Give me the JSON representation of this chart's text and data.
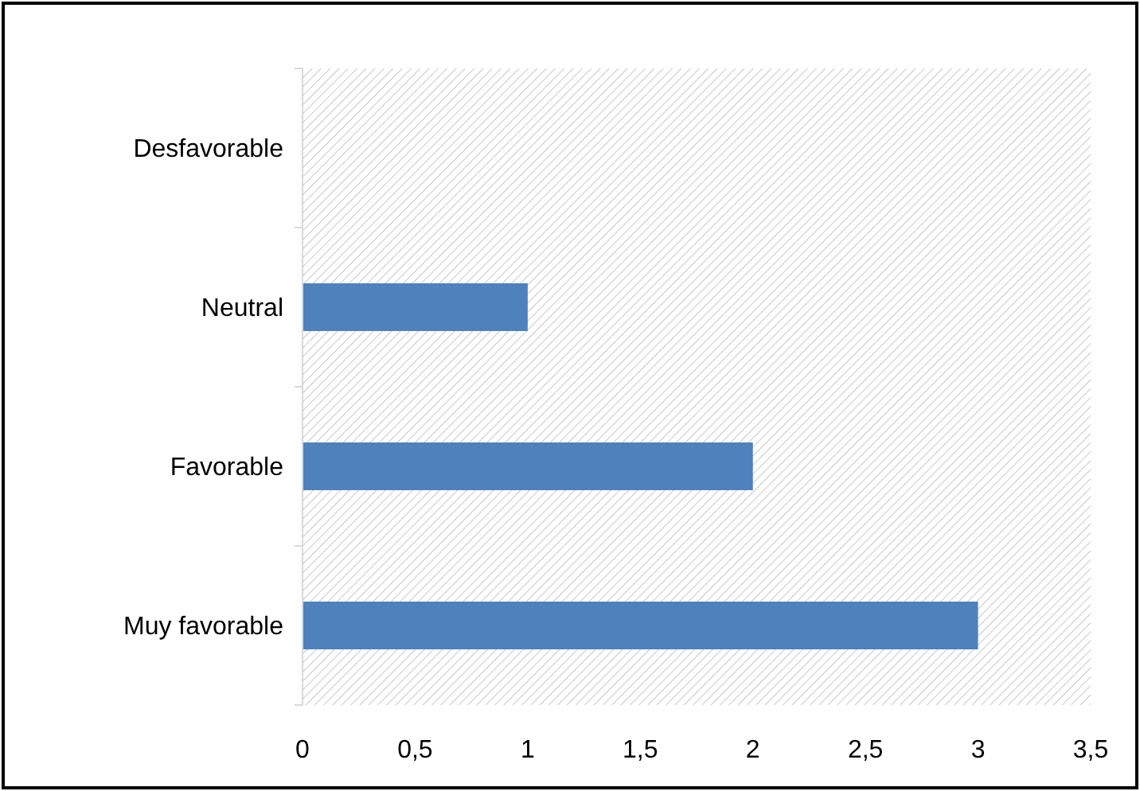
{
  "chart_data": {
    "type": "bar",
    "orientation": "horizontal",
    "categories": [
      "Desfavorable",
      "Neutral",
      "Favorable",
      "Muy favorable"
    ],
    "values": [
      0,
      1,
      2,
      3
    ],
    "color": "#4f81bd",
    "xlim": [
      0,
      3.5
    ],
    "xticks": [
      0,
      {
        "value": 0.5,
        "label": "0,5"
      },
      1,
      {
        "value": 1.5,
        "label": "1,5"
      },
      2,
      {
        "value": 2.5,
        "label": "2,5"
      },
      3,
      {
        "value": 3.5,
        "label": "3,5"
      }
    ],
    "grid": false
  }
}
